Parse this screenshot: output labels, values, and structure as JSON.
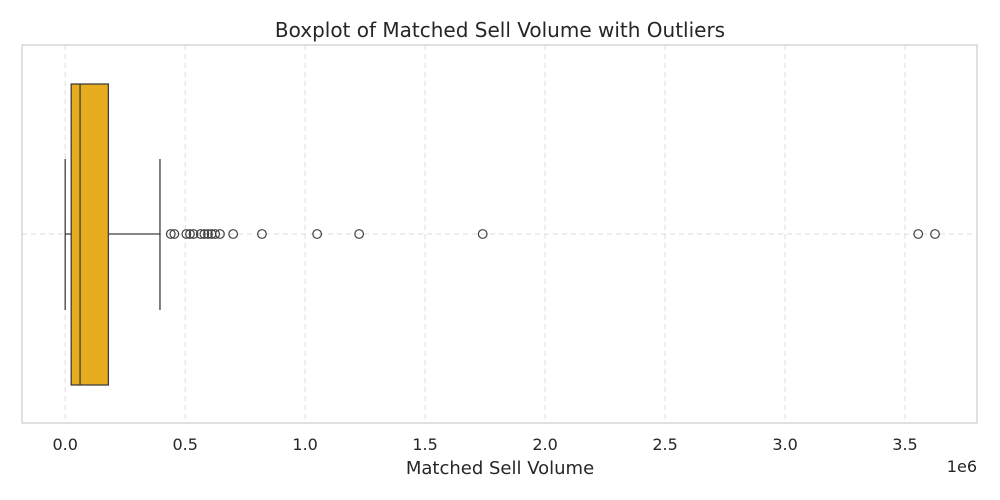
{
  "chart_data": {
    "type": "boxplot",
    "orientation": "horizontal",
    "title": "Boxplot of Matched Sell Volume with Outliers",
    "xlabel": "Matched Sell Volume",
    "ylabel": "",
    "x_offset_label": "1e6",
    "xlim": [
      -0.18,
      3.8
    ],
    "xticks": [
      0.0,
      0.5,
      1.0,
      1.5,
      2.0,
      2.5,
      3.0,
      3.5
    ],
    "xtick_labels": [
      "0.0",
      "0.5",
      "1.0",
      "1.5",
      "2.0",
      "2.5",
      "3.0",
      "3.5"
    ],
    "grid": true,
    "box_color": "#e6ac1e",
    "edge_color": "#3f3f3f",
    "box": {
      "whisker_low": 0.0,
      "q1": 0.025,
      "median": 0.062,
      "q3": 0.18,
      "whisker_high": 0.395
    },
    "outliers": [
      0.44,
      0.455,
      0.505,
      0.52,
      0.535,
      0.565,
      0.58,
      0.595,
      0.61,
      0.625,
      0.645,
      0.7,
      0.82,
      1.05,
      1.225,
      1.74,
      3.555,
      3.625
    ]
  }
}
